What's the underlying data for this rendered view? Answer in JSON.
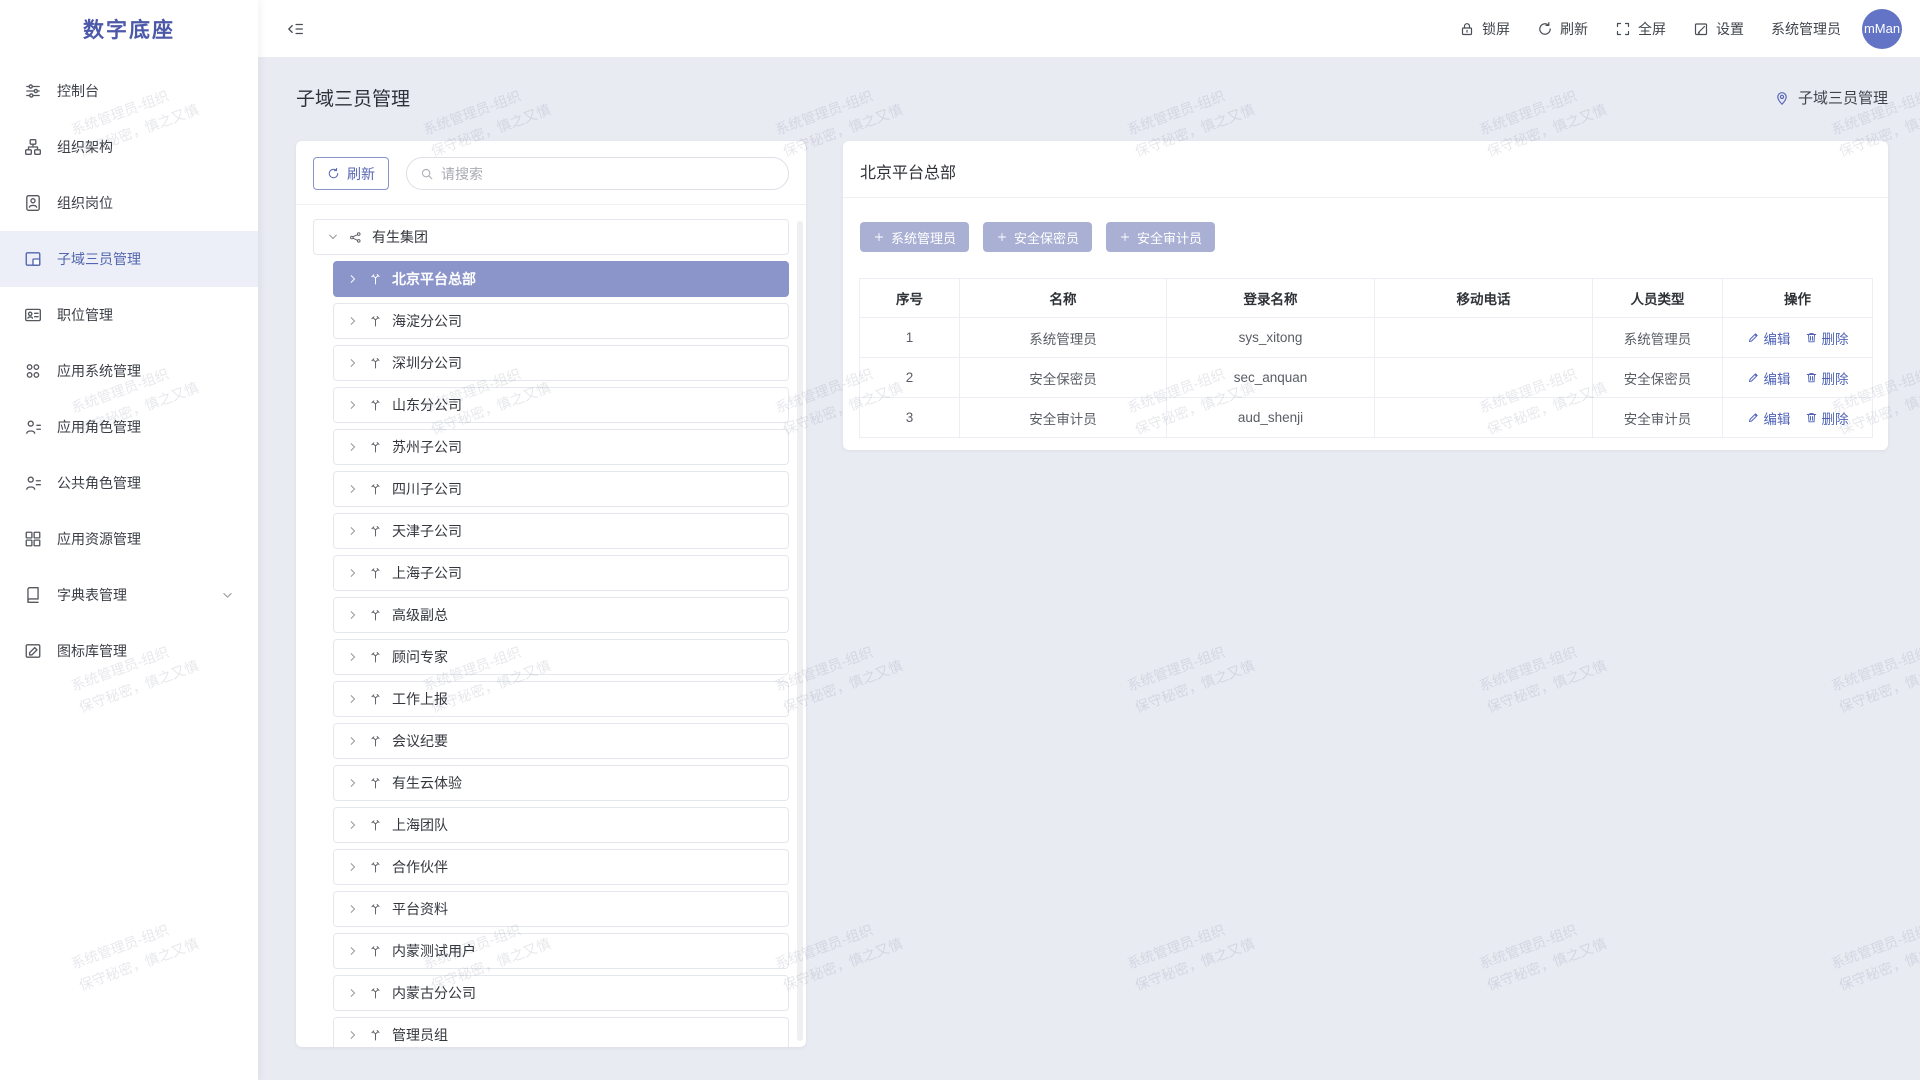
{
  "app": {
    "logo": "数字底座"
  },
  "sidebar": {
    "items": [
      {
        "icon": "sliders-icon",
        "label": "控制台",
        "active": false,
        "expandable": false
      },
      {
        "icon": "org-chart-icon",
        "label": "组织架构",
        "active": false,
        "expandable": false
      },
      {
        "icon": "badge-person-icon",
        "label": "组织岗位",
        "active": false,
        "expandable": false
      },
      {
        "icon": "layout-icon",
        "label": "子域三员管理",
        "active": true,
        "expandable": false
      },
      {
        "icon": "id-card-icon",
        "label": "职位管理",
        "active": false,
        "expandable": false
      },
      {
        "icon": "app-system-icon",
        "label": "应用系统管理",
        "active": false,
        "expandable": false
      },
      {
        "icon": "app-role-icon",
        "label": "应用角色管理",
        "active": false,
        "expandable": false
      },
      {
        "icon": "public-role-icon",
        "label": "公共角色管理",
        "active": false,
        "expandable": false
      },
      {
        "icon": "app-resource-icon",
        "label": "应用资源管理",
        "active": false,
        "expandable": false
      },
      {
        "icon": "dictionary-icon",
        "label": "字典表管理",
        "active": false,
        "expandable": true
      },
      {
        "icon": "icon-library-icon",
        "label": "图标库管理",
        "active": false,
        "expandable": false
      }
    ]
  },
  "topbar": {
    "collapse_icon": "fold-icon",
    "actions": [
      {
        "icon": "lock-icon",
        "label": "锁屏"
      },
      {
        "icon": "refresh-icon",
        "label": "刷新"
      },
      {
        "icon": "fullscreen-icon",
        "label": "全屏"
      },
      {
        "icon": "edit-square-icon",
        "label": "设置"
      }
    ],
    "username": "系统管理员",
    "avatar_text": "mMan"
  },
  "page": {
    "title": "子域三员管理",
    "breadcrumb": "子域三员管理"
  },
  "tree_panel": {
    "refresh_label": "刷新",
    "search_placeholder": "请搜索",
    "root": {
      "label": "有生集团",
      "expand_icon": "chevron-down-icon",
      "org_icon": "share-icon"
    },
    "children": [
      {
        "label": "北京平台总部",
        "selected": true
      },
      {
        "label": "海淀分公司",
        "selected": false
      },
      {
        "label": "深圳分公司",
        "selected": false
      },
      {
        "label": "山东分公司",
        "selected": false
      },
      {
        "label": "苏州子公司",
        "selected": false
      },
      {
        "label": "四川子公司",
        "selected": false
      },
      {
        "label": "天津子公司",
        "selected": false
      },
      {
        "label": "上海子公司",
        "selected": false
      },
      {
        "label": "高级副总",
        "selected": false
      },
      {
        "label": "顾问专家",
        "selected": false
      },
      {
        "label": "工作上报",
        "selected": false
      },
      {
        "label": "会议纪要",
        "selected": false
      },
      {
        "label": "有生云体验",
        "selected": false
      },
      {
        "label": "上海团队",
        "selected": false
      },
      {
        "label": "合作伙伴",
        "selected": false
      },
      {
        "label": "平台资料",
        "selected": false
      },
      {
        "label": "内蒙测试用户",
        "selected": false
      },
      {
        "label": "内蒙古分公司",
        "selected": false
      },
      {
        "label": "管理员组",
        "selected": false
      }
    ]
  },
  "detail_panel": {
    "title": "北京平台总部",
    "add_buttons": [
      {
        "icon": "plus-icon",
        "label": "系统管理员"
      },
      {
        "icon": "plus-icon",
        "label": "安全保密员"
      },
      {
        "icon": "plus-icon",
        "label": "安全审计员"
      }
    ],
    "table": {
      "headers": [
        "序号",
        "名称",
        "登录名称",
        "移动电话",
        "人员类型",
        "操作"
      ],
      "rows": [
        {
          "index": "1",
          "name": "系统管理员",
          "login": "sys_xitong",
          "phone": "",
          "type": "系统管理员"
        },
        {
          "index": "2",
          "name": "安全保密员",
          "login": "sec_anquan",
          "phone": "",
          "type": "安全保密员"
        },
        {
          "index": "3",
          "name": "安全审计员",
          "login": "aud_shenji",
          "phone": "",
          "type": "安全审计员"
        }
      ],
      "actions": [
        {
          "icon": "edit-icon",
          "label": "编辑"
        },
        {
          "icon": "trash-icon",
          "label": "删除"
        }
      ]
    }
  },
  "watermark": {
    "line1": "系统管理员-组织",
    "line2": "保守秘密，慎之又慎"
  },
  "colors": {
    "primary": "#5265ae",
    "selected_tree_bg": "#8b95c9",
    "add_button_bg": "#a9b0d4",
    "link": "#5063b8",
    "content_bg": "#e9ebf3",
    "avatar_bg": "#6373c5"
  }
}
